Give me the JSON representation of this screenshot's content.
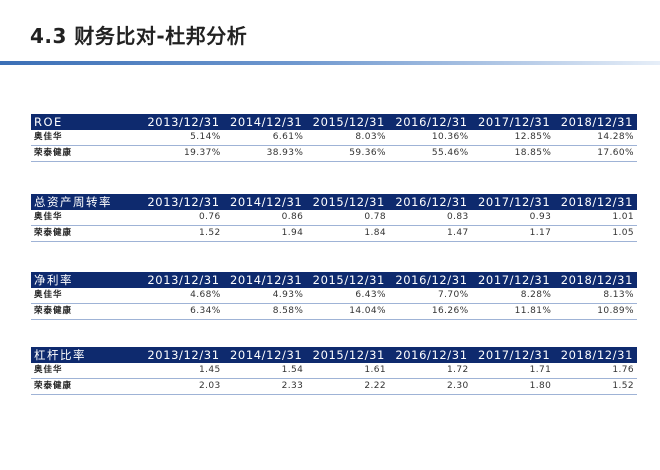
{
  "title": "4.3 财务比对-杜邦分析",
  "tables": [
    {
      "metric": "ROE",
      "years": [
        "2013/12/31",
        "2014/12/31",
        "2015/12/31",
        "2016/12/31",
        "2017/12/31",
        "2018/12/31"
      ],
      "rows": [
        {
          "company": "奥佳华",
          "values": [
            "5.14%",
            "6.61%",
            "8.03%",
            "10.36%",
            "12.85%",
            "14.28%"
          ]
        },
        {
          "company": "荣泰健康",
          "values": [
            "19.37%",
            "38.93%",
            "59.36%",
            "55.46%",
            "18.85%",
            "17.60%"
          ]
        }
      ]
    },
    {
      "metric": "总资产周转率",
      "years": [
        "2013/12/31",
        "2014/12/31",
        "2015/12/31",
        "2016/12/31",
        "2017/12/31",
        "2018/12/31"
      ],
      "rows": [
        {
          "company": "奥佳华",
          "values": [
            "0.76",
            "0.86",
            "0.78",
            "0.83",
            "0.93",
            "1.01"
          ]
        },
        {
          "company": "荣泰健康",
          "values": [
            "1.52",
            "1.94",
            "1.84",
            "1.47",
            "1.17",
            "1.05"
          ]
        }
      ]
    },
    {
      "metric": "净利率",
      "years": [
        "2013/12/31",
        "2014/12/31",
        "2015/12/31",
        "2016/12/31",
        "2017/12/31",
        "2018/12/31"
      ],
      "rows": [
        {
          "company": "奥佳华",
          "values": [
            "4.68%",
            "4.93%",
            "6.43%",
            "7.70%",
            "8.28%",
            "8.13%"
          ]
        },
        {
          "company": "荣泰健康",
          "values": [
            "6.34%",
            "8.58%",
            "14.04%",
            "16.26%",
            "11.81%",
            "10.89%"
          ]
        }
      ]
    },
    {
      "metric": "杠杆比率",
      "years": [
        "2013/12/31",
        "2014/12/31",
        "2015/12/31",
        "2016/12/31",
        "2017/12/31",
        "2018/12/31"
      ],
      "rows": [
        {
          "company": "奥佳华",
          "values": [
            "1.45",
            "1.54",
            "1.61",
            "1.72",
            "1.71",
            "1.76"
          ]
        },
        {
          "company": "荣泰健康",
          "values": [
            "2.03",
            "2.33",
            "2.22",
            "2.30",
            "1.80",
            "1.52"
          ]
        }
      ]
    }
  ]
}
